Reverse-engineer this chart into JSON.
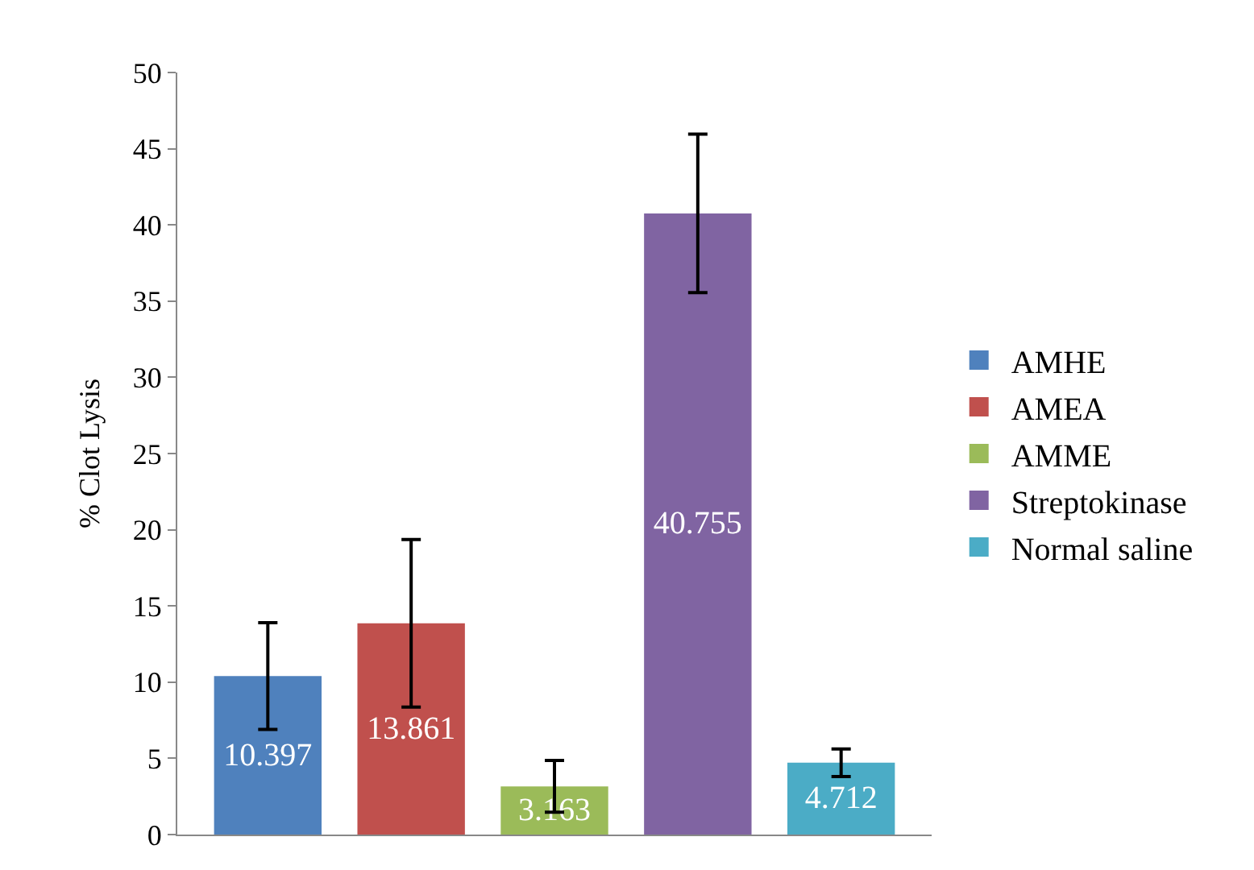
{
  "chart_data": {
    "type": "bar",
    "ylabel": "% Clot Lysis",
    "categories": [
      null
    ],
    "series": [
      {
        "name": "AMHE",
        "color": "#4f81bd",
        "values": [
          10.397
        ],
        "errors": [
          3.5
        ]
      },
      {
        "name": "AMEA",
        "color": "#c0504d",
        "values": [
          13.861
        ],
        "errors": [
          5.5
        ]
      },
      {
        "name": "AMME",
        "color": "#9bbb59",
        "values": [
          3.163
        ],
        "errors": [
          1.7
        ]
      },
      {
        "name": "Streptokinase",
        "color": "#8064a2",
        "values": [
          40.755
        ],
        "errors": [
          5.2
        ]
      },
      {
        "name": "Normal saline",
        "color": "#4bacc6",
        "values": [
          4.712
        ],
        "errors": [
          0.9
        ]
      }
    ],
    "ylim": [
      0,
      50
    ],
    "yticks": [
      0,
      5,
      10,
      15,
      20,
      25,
      30,
      35,
      40,
      45,
      50
    ],
    "data_labels": true,
    "legend": "right"
  }
}
